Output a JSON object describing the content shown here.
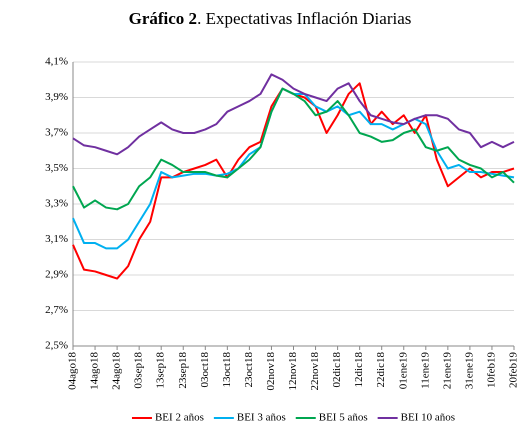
{
  "chart_data": {
    "type": "line",
    "title_bold": "Gráfico 2",
    "title": ". Expectativas Inflación Diarias",
    "categories": [
      "04ago18",
      null,
      "14ago18",
      null,
      "24ago18",
      null,
      "03sep18",
      null,
      "13sep18",
      null,
      "23sep18",
      null,
      "03oct18",
      null,
      "13oct18",
      null,
      "23oct18",
      null,
      "02nov18",
      null,
      "12nov18",
      null,
      "22nov18",
      null,
      "02dic18",
      null,
      "12dic18",
      null,
      "22dic18",
      null,
      "01ene19",
      null,
      "11ene19",
      null,
      "21ene19",
      null,
      "31ene19",
      null,
      "10feb19",
      null,
      "20feb19"
    ],
    "series": [
      {
        "name": "BEI 2 años",
        "color": "#ff0000",
        "values": [
          3.07,
          2.93,
          2.92,
          2.9,
          2.88,
          2.95,
          3.1,
          3.2,
          3.45,
          3.45,
          3.48,
          3.5,
          3.52,
          3.55,
          3.45,
          3.55,
          3.62,
          3.65,
          3.85,
          3.95,
          3.92,
          3.9,
          3.85,
          3.7,
          3.8,
          3.92,
          3.98,
          3.75,
          3.82,
          3.75,
          3.8,
          3.7,
          3.8,
          3.55,
          3.4,
          3.45,
          3.5,
          3.45,
          3.48,
          3.48,
          3.5
        ]
      },
      {
        "name": "BEI 3 años",
        "color": "#00b0f0",
        "values": [
          3.22,
          3.08,
          3.08,
          3.05,
          3.05,
          3.1,
          3.2,
          3.3,
          3.48,
          3.45,
          3.46,
          3.47,
          3.47,
          3.46,
          3.47,
          3.5,
          3.58,
          3.62,
          3.82,
          3.95,
          3.92,
          3.92,
          3.85,
          3.82,
          3.85,
          3.8,
          3.82,
          3.75,
          3.75,
          3.72,
          3.75,
          3.78,
          3.75,
          3.6,
          3.5,
          3.52,
          3.48,
          3.48,
          3.47,
          3.46,
          3.45
        ]
      },
      {
        "name": "BEI 5 años",
        "color": "#00a650",
        "values": [
          3.4,
          3.28,
          3.32,
          3.28,
          3.27,
          3.3,
          3.4,
          3.45,
          3.55,
          3.52,
          3.48,
          3.48,
          3.48,
          3.46,
          3.45,
          3.5,
          3.55,
          3.62,
          3.82,
          3.95,
          3.92,
          3.88,
          3.8,
          3.82,
          3.88,
          3.8,
          3.7,
          3.68,
          3.65,
          3.66,
          3.7,
          3.72,
          3.62,
          3.6,
          3.62,
          3.55,
          3.52,
          3.5,
          3.45,
          3.48,
          3.42
        ]
      },
      {
        "name": "BEI 10 años",
        "color": "#7030a0",
        "values": [
          3.67,
          3.63,
          3.62,
          3.6,
          3.58,
          3.62,
          3.68,
          3.72,
          3.76,
          3.72,
          3.7,
          3.7,
          3.72,
          3.75,
          3.82,
          3.85,
          3.88,
          3.92,
          4.03,
          4.0,
          3.95,
          3.92,
          3.9,
          3.88,
          3.95,
          3.98,
          3.88,
          3.8,
          3.78,
          3.76,
          3.75,
          3.78,
          3.8,
          3.8,
          3.78,
          3.72,
          3.7,
          3.62,
          3.65,
          3.62,
          3.65
        ]
      }
    ],
    "ylim": [
      2.5,
      4.1
    ],
    "yticks": [
      {
        "value": 2.5,
        "label": "2,5%"
      },
      {
        "value": 2.7,
        "label": "2,7%"
      },
      {
        "value": 2.9,
        "label": "2,9%"
      },
      {
        "value": 3.1,
        "label": "3,1%"
      },
      {
        "value": 3.3,
        "label": "3,3%"
      },
      {
        "value": 3.5,
        "label": "3,5%"
      },
      {
        "value": 3.7,
        "label": "3,7%"
      },
      {
        "value": 3.9,
        "label": "3,9%"
      },
      {
        "value": 4.1,
        "label": "4,1%"
      }
    ],
    "grid": true,
    "legend": "bottom"
  }
}
